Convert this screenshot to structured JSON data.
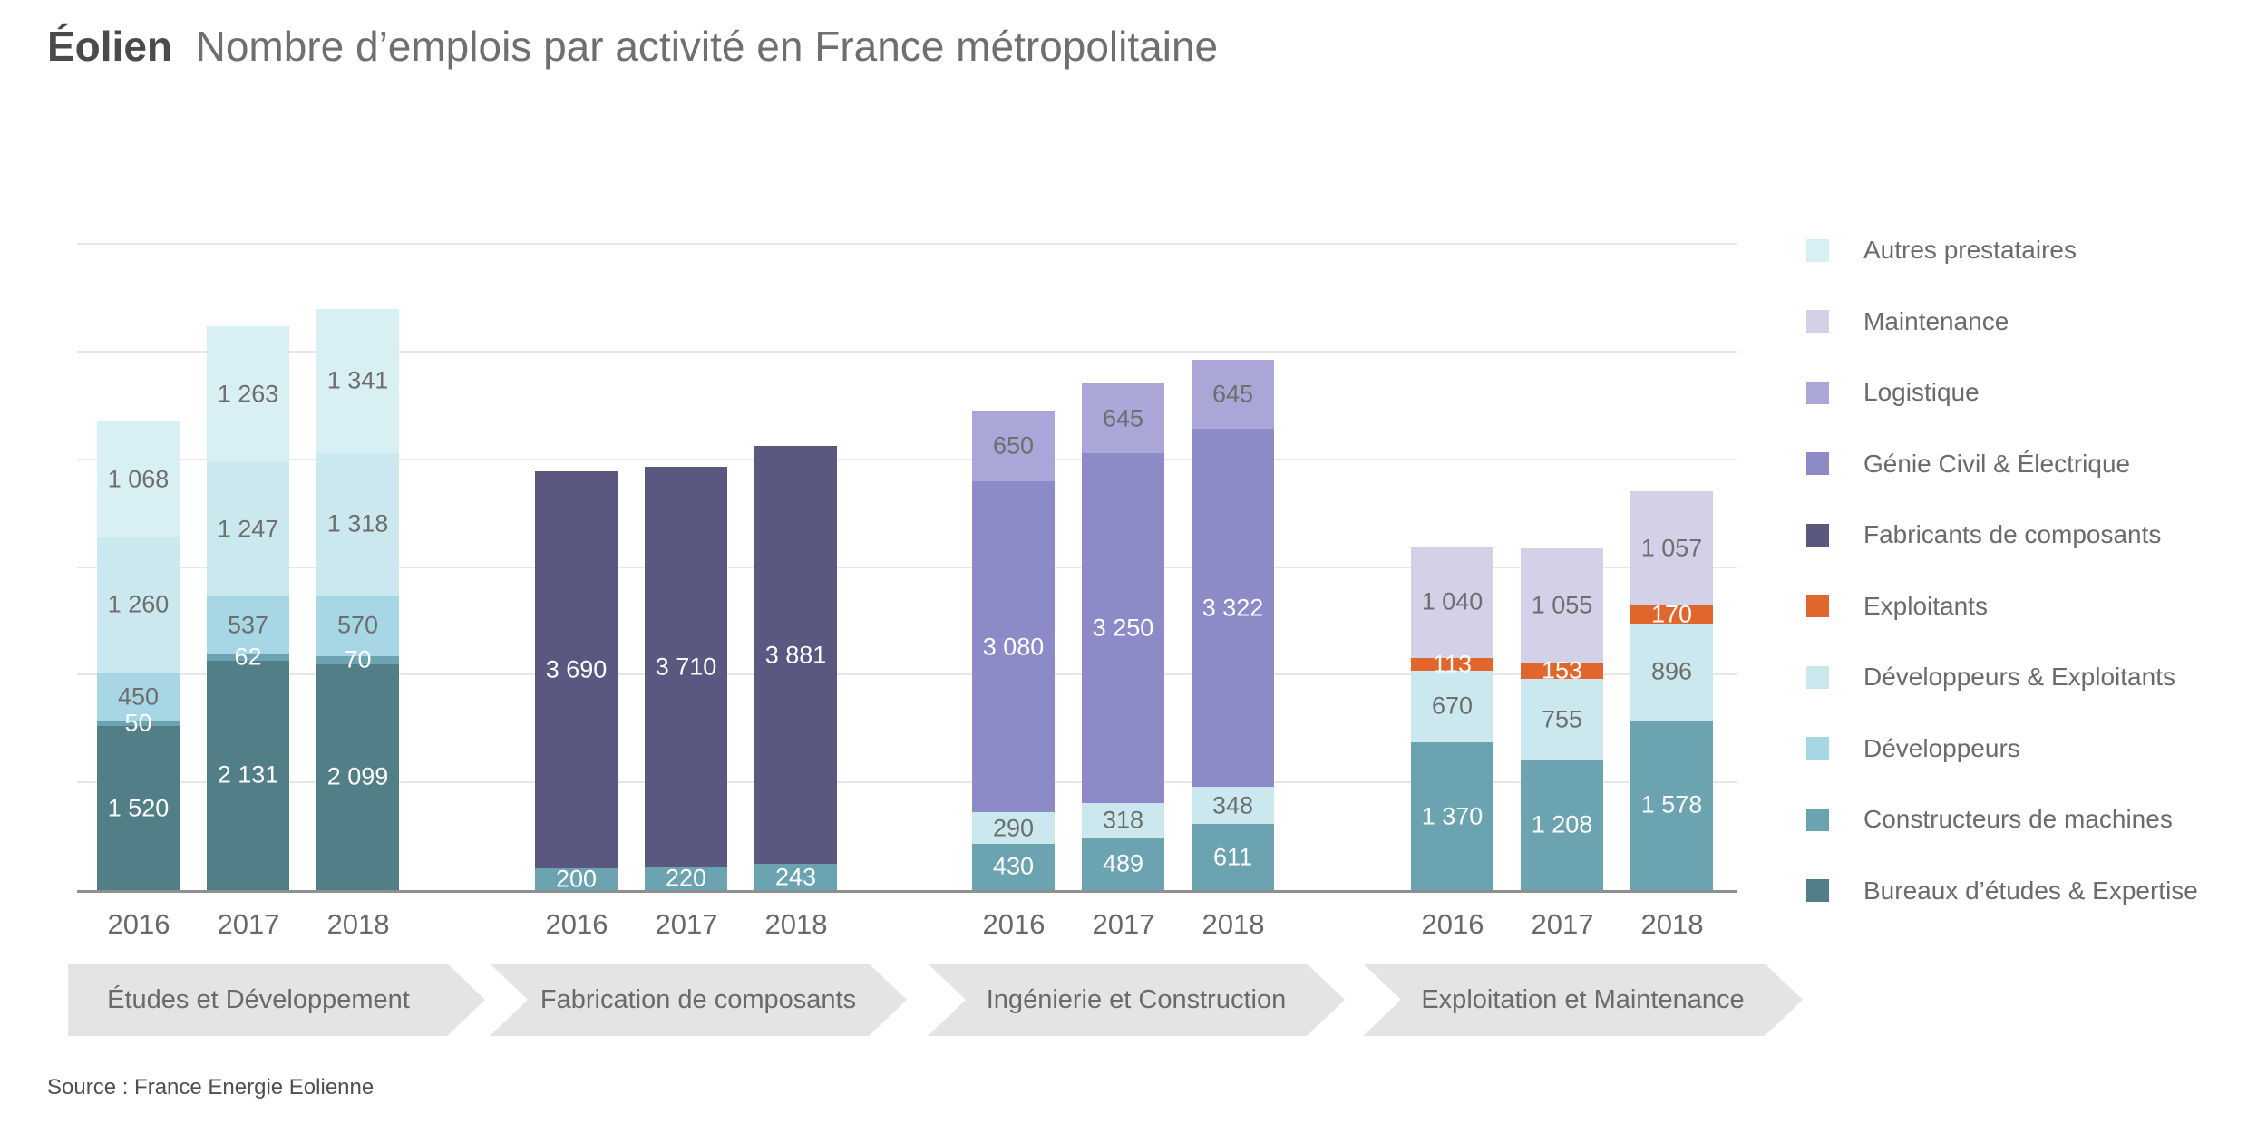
{
  "title": {
    "lead": "Éolien",
    "subtitle": "Nombre d’emplois par activité en France métropolitaine"
  },
  "source_note": "Source : France Energie Eolienne",
  "legend": {
    "items": [
      {
        "key": "autres",
        "label": "Autres prestataires",
        "color": "#d8f0f4"
      },
      {
        "key": "maintenance",
        "label": "Maintenance",
        "color": "#d2d1e8"
      },
      {
        "key": "logistique",
        "label": "Logistique",
        "color": "#aaa6d8"
      },
      {
        "key": "genie",
        "label": "Génie Civil & Électrique",
        "color": "#8d8ac8"
      },
      {
        "key": "fabricants",
        "label": "Fabricants de composants",
        "color": "#5a5880"
      },
      {
        "key": "exploitants",
        "label": "Exploitants",
        "color": "#e0662c"
      },
      {
        "key": "dev_expl",
        "label": "Développeurs & Exploitants",
        "color": "#cbe8ef"
      },
      {
        "key": "developpeurs",
        "label": "Développeurs",
        "color": "#a7d7e4"
      },
      {
        "key": "constructeurs",
        "label": "Constructeurs de machines",
        "color": "#6ba3b0"
      },
      {
        "key": "bureaux",
        "label": "Bureaux d’études & Expertise",
        "color": "#527e88"
      }
    ]
  },
  "chart_data": {
    "type": "bar",
    "stacked": true,
    "title": "Éolien — Nombre d’emplois par activité en France métropolitaine",
    "unit": "emplois",
    "years": [
      "2016",
      "2017",
      "2018"
    ],
    "ylim": [
      0,
      6500
    ],
    "gridline_step": 1000,
    "grid": "horizontal",
    "legend_position": "right",
    "series_order_top_to_bottom": [
      "Autres prestataires",
      "Maintenance",
      "Logistique",
      "Génie Civil & Électrique",
      "Fabricants de composants",
      "Exploitants",
      "Développeurs & Exploitants",
      "Développeurs",
      "Constructeurs de machines",
      "Bureaux d’études & Expertise"
    ],
    "groups": [
      {
        "label": "Études et Développement",
        "bars": [
          {
            "year": "2016",
            "segments_bottom_up": [
              {
                "key": "bureaux",
                "series": "Bureaux d’études & Expertise",
                "value": 1520,
                "label": "1 520",
                "label_style": "light"
              },
              {
                "key": "constructeurs",
                "series": "Constructeurs de machines",
                "value": 50,
                "label": "50",
                "label_style": "light"
              },
              {
                "key": "developpeurs",
                "series": "Développeurs",
                "value": 450,
                "label": "450",
                "label_style": "dark"
              },
              {
                "key": "dev_expl",
                "series": "Développeurs & Exploitants",
                "value": 1260,
                "label": "1 260",
                "label_style": "dark"
              },
              {
                "key": "autres",
                "series": "Autres prestataires",
                "value": 1068,
                "label": "1 068",
                "label_style": "dark"
              }
            ]
          },
          {
            "year": "2017",
            "segments_bottom_up": [
              {
                "key": "bureaux",
                "series": "Bureaux d’études & Expertise",
                "value": 2131,
                "label": "2 131",
                "label_style": "light"
              },
              {
                "key": "constructeurs",
                "series": "Constructeurs de machines",
                "value": 62,
                "label": "62",
                "label_style": "light"
              },
              {
                "key": "developpeurs",
                "series": "Développeurs",
                "value": 537,
                "label": "537",
                "label_style": "dark"
              },
              {
                "key": "dev_expl",
                "series": "Développeurs & Exploitants",
                "value": 1247,
                "label": "1 247",
                "label_style": "dark"
              },
              {
                "key": "autres",
                "series": "Autres prestataires",
                "value": 1263,
                "label": "1 263",
                "label_style": "dark"
              }
            ]
          },
          {
            "year": "2018",
            "segments_bottom_up": [
              {
                "key": "bureaux",
                "series": "Bureaux d’études & Expertise",
                "value": 2099,
                "label": "2 099",
                "label_style": "light"
              },
              {
                "key": "constructeurs",
                "series": "Constructeurs de machines",
                "value": 70,
                "label": "70",
                "label_style": "light"
              },
              {
                "key": "developpeurs",
                "series": "Développeurs",
                "value": 570,
                "label": "570",
                "label_style": "dark"
              },
              {
                "key": "dev_expl",
                "series": "Développeurs & Exploitants",
                "value": 1318,
                "label": "1 318",
                "label_style": "dark"
              },
              {
                "key": "autres",
                "series": "Autres prestataires",
                "value": 1341,
                "label": "1 341",
                "label_style": "dark"
              }
            ]
          }
        ]
      },
      {
        "label": "Fabrication de composants",
        "bars": [
          {
            "year": "2016",
            "segments_bottom_up": [
              {
                "key": "constructeurs",
                "series": "Constructeurs de machines",
                "value": 200,
                "label": "200",
                "label_style": "light"
              },
              {
                "key": "fabricants",
                "series": "Fabricants de composants",
                "value": 3690,
                "label": "3 690",
                "label_style": "light"
              }
            ]
          },
          {
            "year": "2017",
            "segments_bottom_up": [
              {
                "key": "constructeurs",
                "series": "Constructeurs de machines",
                "value": 220,
                "label": "220",
                "label_style": "light"
              },
              {
                "key": "fabricants",
                "series": "Fabricants de composants",
                "value": 3710,
                "label": "3 710",
                "label_style": "light"
              }
            ]
          },
          {
            "year": "2018",
            "segments_bottom_up": [
              {
                "key": "constructeurs",
                "series": "Constructeurs de machines",
                "value": 243,
                "label": "243",
                "label_style": "light"
              },
              {
                "key": "fabricants",
                "series": "Fabricants de composants",
                "value": 3881,
                "label": "3 881",
                "label_style": "light"
              }
            ]
          }
        ]
      },
      {
        "label": "Ingénierie et Construction",
        "bars": [
          {
            "year": "2016",
            "segments_bottom_up": [
              {
                "key": "constructeurs",
                "series": "Constructeurs de machines",
                "value": 430,
                "label": "430",
                "label_style": "light"
              },
              {
                "key": "dev_expl",
                "series": "Développeurs & Exploitants",
                "value": 290,
                "label": "290",
                "label_style": "dark"
              },
              {
                "key": "genie",
                "series": "Génie Civil & Électrique",
                "value": 3080,
                "label": "3 080",
                "label_style": "light"
              },
              {
                "key": "logistique",
                "series": "Logistique",
                "value": 650,
                "label": "650",
                "label_style": "dark"
              }
            ]
          },
          {
            "year": "2017",
            "segments_bottom_up": [
              {
                "key": "constructeurs",
                "series": "Constructeurs de machines",
                "value": 489,
                "label": "489",
                "label_style": "light"
              },
              {
                "key": "dev_expl",
                "series": "Développeurs & Exploitants",
                "value": 318,
                "label": "318",
                "label_style": "dark"
              },
              {
                "key": "genie",
                "series": "Génie Civil & Électrique",
                "value": 3250,
                "label": "3 250",
                "label_style": "light"
              },
              {
                "key": "logistique",
                "series": "Logistique",
                "value": 645,
                "label": "645",
                "label_style": "dark"
              }
            ]
          },
          {
            "year": "2018",
            "segments_bottom_up": [
              {
                "key": "constructeurs",
                "series": "Constructeurs de machines",
                "value": 611,
                "label": "611",
                "label_style": "light"
              },
              {
                "key": "dev_expl",
                "series": "Développeurs & Exploitants",
                "value": 348,
                "label": "348",
                "label_style": "dark"
              },
              {
                "key": "genie",
                "series": "Génie Civil & Électrique",
                "value": 3322,
                "label": "3 322",
                "label_style": "light"
              },
              {
                "key": "logistique",
                "series": "Logistique",
                "value": 645,
                "label": "645",
                "label_style": "dark"
              }
            ]
          }
        ]
      },
      {
        "label": "Exploitation et Maintenance",
        "bars": [
          {
            "year": "2016",
            "segments_bottom_up": [
              {
                "key": "constructeurs",
                "series": "Constructeurs de machines",
                "value": 1370,
                "label": "1 370",
                "label_style": "light"
              },
              {
                "key": "dev_expl",
                "series": "Développeurs & Exploitants",
                "value": 670,
                "label": "670",
                "label_style": "dark"
              },
              {
                "key": "exploitants",
                "series": "Exploitants",
                "value": 113,
                "label": "113",
                "label_style": "light"
              },
              {
                "key": "maintenance",
                "series": "Maintenance",
                "value": 1040,
                "label": "1 040",
                "label_style": "dark"
              }
            ]
          },
          {
            "year": "2017",
            "segments_bottom_up": [
              {
                "key": "constructeurs",
                "series": "Constructeurs de machines",
                "value": 1208,
                "label": "1 208",
                "label_style": "light"
              },
              {
                "key": "dev_expl",
                "series": "Développeurs & Exploitants",
                "value": 755,
                "label": "755",
                "label_style": "dark"
              },
              {
                "key": "exploitants",
                "series": "Exploitants",
                "value": 153,
                "label": "153",
                "label_style": "light"
              },
              {
                "key": "maintenance",
                "series": "Maintenance",
                "value": 1055,
                "label": "1 055",
                "label_style": "dark"
              }
            ]
          },
          {
            "year": "2018",
            "segments_bottom_up": [
              {
                "key": "constructeurs",
                "series": "Constructeurs de machines",
                "value": 1578,
                "label": "1 578",
                "label_style": "light"
              },
              {
                "key": "dev_expl",
                "series": "Développeurs & Exploitants",
                "value": 896,
                "label": "896",
                "label_style": "dark"
              },
              {
                "key": "exploitants",
                "series": "Exploitants",
                "value": 170,
                "label": "170",
                "label_style": "light"
              },
              {
                "key": "maintenance",
                "series": "Maintenance",
                "value": 1057,
                "label": "1 057",
                "label_style": "dark"
              }
            ]
          }
        ]
      }
    ]
  }
}
